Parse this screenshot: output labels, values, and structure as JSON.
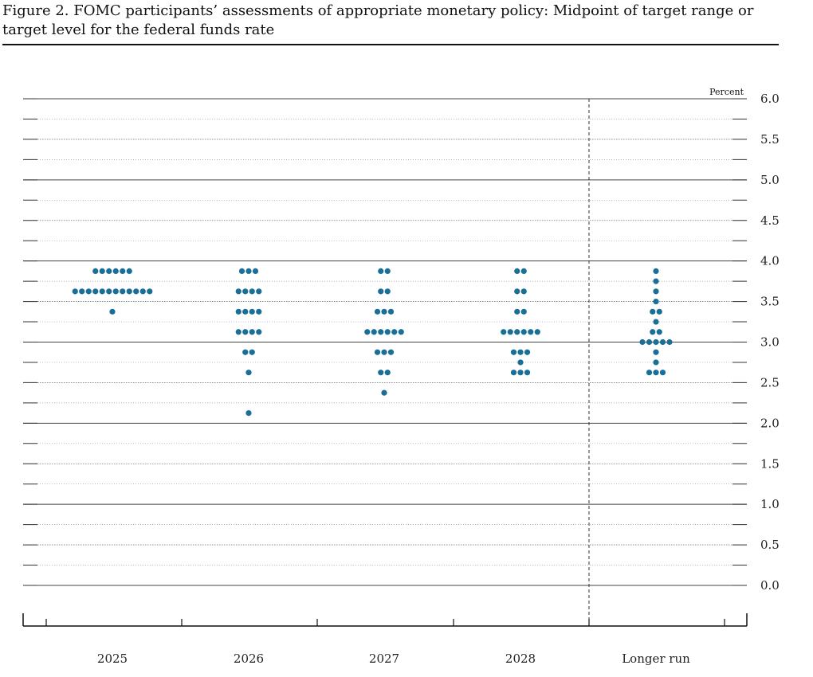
{
  "figure": {
    "title": "Figure 2. FOMC participants’ assessments of appropriate monetary policy: Midpoint of target range or target level for the federal funds rate"
  },
  "chart_data": {
    "type": "scatter",
    "title": "Figure 2. FOMC participants’ assessments of appropriate monetary policy: Midpoint of target range or target level for the federal funds rate",
    "ylabel": "Percent",
    "xlabel": "",
    "ylim": [
      0,
      6
    ],
    "yticks": [
      "6.0",
      "5.5",
      "5.0",
      "4.5",
      "4.0",
      "3.5",
      "3.0",
      "2.5",
      "2.0",
      "1.5",
      "1.0",
      "0.5",
      "0.0"
    ],
    "grid": true,
    "dot_color": "#1a6f97",
    "categories": [
      "2025",
      "2026",
      "2027",
      "2028",
      "Longer run"
    ],
    "dots": [
      {
        "category": "2025",
        "points": [
          {
            "y": 3.875,
            "count": 6
          },
          {
            "y": 3.625,
            "count": 12
          },
          {
            "y": 3.375,
            "count": 1
          }
        ]
      },
      {
        "category": "2026",
        "points": [
          {
            "y": 3.875,
            "count": 3
          },
          {
            "y": 3.625,
            "count": 4
          },
          {
            "y": 3.375,
            "count": 4
          },
          {
            "y": 3.125,
            "count": 4
          },
          {
            "y": 2.875,
            "count": 2
          },
          {
            "y": 2.625,
            "count": 1
          },
          {
            "y": 2.125,
            "count": 1
          }
        ]
      },
      {
        "category": "2027",
        "points": [
          {
            "y": 3.875,
            "count": 2
          },
          {
            "y": 3.625,
            "count": 2
          },
          {
            "y": 3.375,
            "count": 3
          },
          {
            "y": 3.125,
            "count": 6
          },
          {
            "y": 2.875,
            "count": 3
          },
          {
            "y": 2.625,
            "count": 2
          },
          {
            "y": 2.375,
            "count": 1
          }
        ]
      },
      {
        "category": "2028",
        "points": [
          {
            "y": 3.875,
            "count": 2
          },
          {
            "y": 3.625,
            "count": 2
          },
          {
            "y": 3.375,
            "count": 2
          },
          {
            "y": 3.125,
            "count": 6
          },
          {
            "y": 2.875,
            "count": 3
          },
          {
            "y": 2.75,
            "count": 1
          },
          {
            "y": 2.625,
            "count": 3
          }
        ]
      },
      {
        "category": "Longer run",
        "points": [
          {
            "y": 3.875,
            "count": 1
          },
          {
            "y": 3.75,
            "count": 1
          },
          {
            "y": 3.625,
            "count": 1
          },
          {
            "y": 3.5,
            "count": 1
          },
          {
            "y": 3.375,
            "count": 2
          },
          {
            "y": 3.25,
            "count": 1
          },
          {
            "y": 3.125,
            "count": 2
          },
          {
            "y": 3.0,
            "count": 5
          },
          {
            "y": 2.875,
            "count": 1
          },
          {
            "y": 2.75,
            "count": 1
          },
          {
            "y": 2.625,
            "count": 3
          }
        ]
      }
    ]
  }
}
